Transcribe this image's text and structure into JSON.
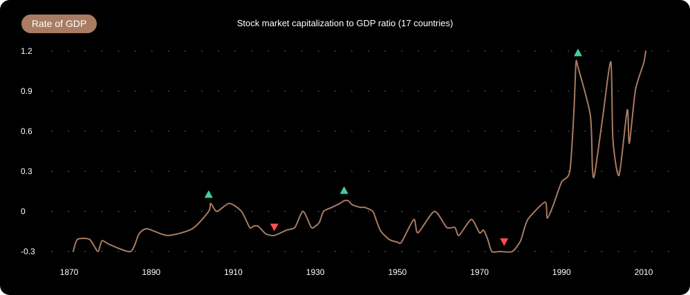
{
  "badge": {
    "label": "Rate of GDP"
  },
  "colors": {
    "background": "#000000",
    "line": "#a97c63",
    "badge": "#a97c63",
    "up_marker": "#3ecf9e",
    "down_marker": "#ff4d4d",
    "text": "#ffffff",
    "grid": "#6a6a6a"
  },
  "chart_data": {
    "type": "line",
    "title": "Stock market capitalization to GDP ratio (17 countries)",
    "xlabel": "",
    "ylabel": "",
    "xlim": [
      1870,
      2010
    ],
    "ylim": [
      -0.3,
      1.2
    ],
    "grid": true,
    "x_ticks": [
      1870,
      1890,
      1910,
      1930,
      1950,
      1970,
      1990,
      2010
    ],
    "y_ticks": [
      1.2,
      0.9,
      0.6,
      0.3,
      0,
      -0.3
    ],
    "x_tick_labels": [
      "1870",
      "1890",
      "1910",
      "1930",
      "1950",
      "1970",
      "1990",
      "2010"
    ],
    "y_tick_labels": [
      "1.2",
      "0.9",
      "0.6",
      "0.3",
      "0",
      "-0.3"
    ],
    "series": [
      {
        "name": "Stock market capitalization to GDP ratio",
        "x": [
          1871,
          1872,
          1875,
          1877,
          1878,
          1880,
          1885,
          1887,
          1889,
          1894,
          1900,
          1904,
          1904.5,
          1906,
          1909,
          1912,
          1914,
          1915,
          1916,
          1917,
          1918,
          1920,
          1923,
          1925,
          1927,
          1929,
          1930,
          1931,
          1932,
          1934,
          1936,
          1937,
          1938,
          1939,
          1941,
          1942,
          1944,
          1945,
          1946,
          1948,
          1950,
          1951,
          1954,
          1955,
          1959,
          1962,
          1964,
          1965,
          1968,
          1970,
          1971,
          1972,
          1973,
          1975,
          1978,
          1980,
          1981,
          1982,
          1986,
          1986.5,
          1988,
          1990,
          1992,
          1993,
          1993.5,
          1994,
          1997,
          1997.5,
          1998,
          2000,
          2002,
          2002.5,
          2004,
          2006,
          2006.5,
          2008,
          2010,
          2010.5
        ],
        "y": [
          -0.3,
          -0.21,
          -0.21,
          -0.3,
          -0.22,
          -0.25,
          -0.3,
          -0.17,
          -0.13,
          -0.18,
          -0.13,
          0.0,
          0.06,
          0.0,
          0.06,
          0.0,
          -0.12,
          -0.11,
          -0.11,
          -0.14,
          -0.17,
          -0.18,
          -0.14,
          -0.12,
          0.0,
          -0.12,
          -0.11,
          -0.08,
          0.0,
          0.03,
          0.06,
          0.08,
          0.08,
          0.05,
          0.03,
          0.03,
          0.0,
          -0.08,
          -0.15,
          -0.21,
          -0.23,
          -0.23,
          -0.06,
          -0.16,
          0.0,
          -0.12,
          -0.12,
          -0.18,
          -0.06,
          -0.16,
          -0.14,
          -0.21,
          -0.3,
          -0.3,
          -0.3,
          -0.22,
          -0.12,
          -0.05,
          0.07,
          -0.05,
          0.05,
          0.22,
          0.3,
          0.75,
          1.11,
          1.08,
          0.72,
          0.33,
          0.27,
          0.7,
          1.12,
          0.54,
          0.27,
          0.76,
          0.51,
          0.91,
          1.11,
          1.2
        ]
      }
    ],
    "annotations": [
      {
        "type": "up",
        "x": 1904,
        "y": 0.13
      },
      {
        "type": "down",
        "x": 1920,
        "y": -0.12
      },
      {
        "type": "up",
        "x": 1937,
        "y": 0.16
      },
      {
        "type": "down",
        "x": 1976,
        "y": -0.23
      },
      {
        "type": "up",
        "x": 1994,
        "y": 1.19
      }
    ]
  }
}
